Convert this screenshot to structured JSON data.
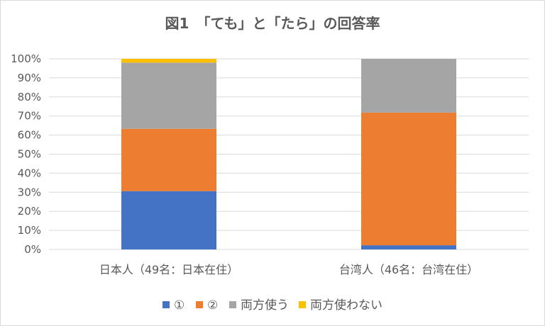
{
  "chart_data": {
    "type": "bar",
    "stacked": true,
    "percent_stacked": true,
    "title": "図1　「ても」と「たら」の回答率",
    "categories": [
      "日本人（49名：日本在住）",
      "台湾人（46名：台湾在住）"
    ],
    "series": [
      {
        "name": "①",
        "color": "#4472C4",
        "values": [
          30.6,
          2.2
        ]
      },
      {
        "name": "②",
        "color": "#ED7D31",
        "values": [
          32.7,
          69.6
        ]
      },
      {
        "name": "両方使う",
        "color": "#A5A5A5",
        "values": [
          34.7,
          28.2
        ]
      },
      {
        "name": "両方使わない",
        "color": "#FFC000",
        "values": [
          2.0,
          0
        ]
      }
    ],
    "y_ticks": [
      "0%",
      "10%",
      "20%",
      "30%",
      "40%",
      "50%",
      "60%",
      "70%",
      "80%",
      "90%",
      "100%"
    ],
    "ylim": [
      0,
      100
    ],
    "grid": true,
    "legend_position": "bottom"
  }
}
